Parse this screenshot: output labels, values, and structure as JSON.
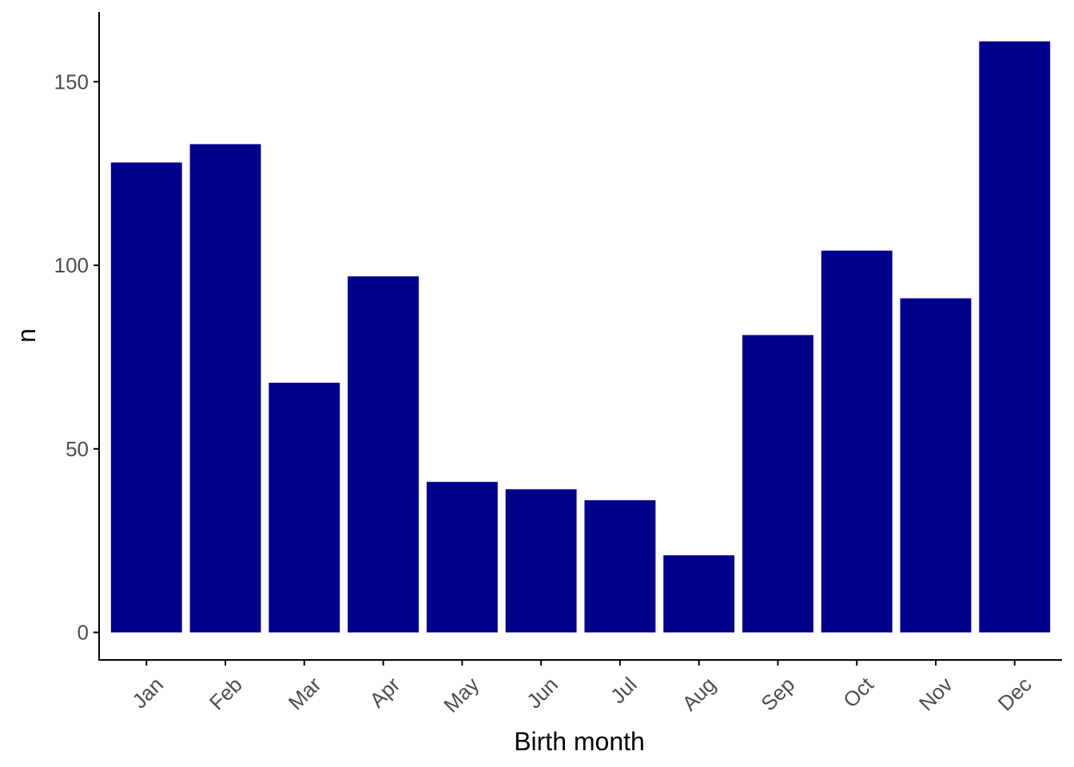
{
  "chart_data": {
    "type": "bar",
    "categories": [
      "Jan",
      "Feb",
      "Mar",
      "Apr",
      "May",
      "Jun",
      "Jul",
      "Aug",
      "Sep",
      "Oct",
      "Nov",
      "Dec"
    ],
    "values": [
      128,
      133,
      68,
      97,
      41,
      39,
      36,
      21,
      81,
      104,
      91,
      161
    ],
    "title": "",
    "xlabel": "Birth month",
    "ylabel": "n",
    "ylim": [
      -7.5,
      169
    ],
    "yticks": [
      0,
      50,
      100,
      150
    ],
    "grid": false,
    "legend": "none",
    "bar_color": "#00008B",
    "axis_color": "#000000",
    "tick_label_color": "#4d4d4d"
  }
}
